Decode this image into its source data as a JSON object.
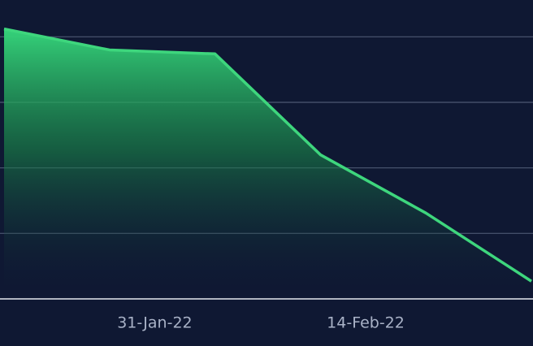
{
  "chart_data": {
    "type": "area",
    "x": [
      "2022-01-21",
      "2022-01-28",
      "2022-02-04",
      "2022-02-11",
      "2022-02-18",
      "2022-02-25"
    ],
    "series": [
      {
        "color": "#3ed67d",
        "values": [
          4.12,
          3.8,
          3.74,
          2.2,
          1.31,
          0.27
        ]
      }
    ],
    "xlim": [
      "2022-01-21",
      "2022-02-25"
    ],
    "xticks": [
      {
        "value": "2022-01-31",
        "label": "31-Jan-22"
      },
      {
        "value": "2022-02-14",
        "label": "14-Feb-22"
      }
    ],
    "ylim": [
      0,
      4.5
    ],
    "yticks": [
      0,
      1,
      2,
      3,
      4
    ],
    "grid": true
  }
}
